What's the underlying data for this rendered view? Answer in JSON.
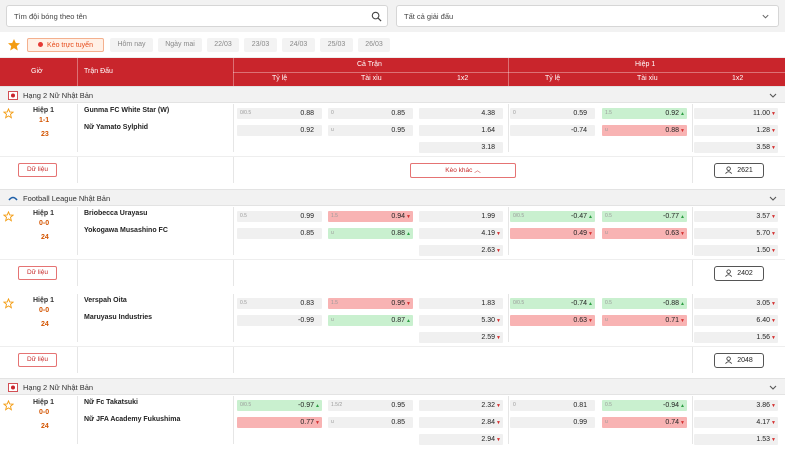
{
  "search": {
    "placeholder": "Tìm đội bóng theo tên"
  },
  "league_select": {
    "value": "Tất cả giải đấu"
  },
  "filters": [
    "Kèo trực tuyến",
    "Hôm nay",
    "Ngày mai",
    "22/03",
    "23/03",
    "24/03",
    "25/03",
    "26/03"
  ],
  "header": {
    "time": "Giờ",
    "match": "Trận Đấu",
    "full": "Cả Trận",
    "half": "Hiệp 1",
    "handicap": "Tỷ lệ",
    "overunder": "Tài xỉu",
    "x12": "1x2"
  },
  "colors": {
    "header_bg": "#c9252c",
    "accent": "#e64a19",
    "red_cell": "#f8b3b3",
    "green_cell": "#c9f0cf"
  },
  "leagues": [
    {
      "name": "Hạng 2 Nữ Nhật Bản",
      "flag_icon": "japan-flag-icon"
    },
    {
      "name": "Football League Nhật Bản",
      "flag_icon": "league-logo-icon"
    },
    {
      "name": "Hạng 2 Nữ Nhật Bản",
      "flag_icon": "japan-flag-icon"
    }
  ],
  "matches": [
    {
      "half": "Hiệp 1",
      "score": "1-1",
      "minute": "23",
      "home": "Gunma FC White Star (W)",
      "away": "Nữ Yamato Sylphid",
      "data_label": "Dữ liệu",
      "more_label": "Kèo khác",
      "count": "2621",
      "rows": [
        [
          [
            "0/0.5",
            "0.88",
            ""
          ],
          [
            "0",
            "0.85",
            ""
          ],
          [
            "",
            "4.38",
            ""
          ],
          [
            "0",
            "0.59",
            ""
          ],
          [
            "1.5",
            "0.92",
            "up",
            "green"
          ],
          [
            "",
            "11.00",
            "down"
          ]
        ],
        [
          [
            "",
            "0.92",
            ""
          ],
          [
            "u",
            "0.95",
            ""
          ],
          [
            "",
            "1.64",
            ""
          ],
          [
            "",
            "-0.74",
            ""
          ],
          [
            "u",
            "0.88",
            "down",
            "red"
          ],
          [
            "",
            "1.28",
            "down"
          ]
        ],
        [
          null,
          null,
          [
            "",
            "3.18",
            ""
          ],
          null,
          null,
          [
            "",
            "3.58",
            "down"
          ]
        ]
      ]
    },
    {
      "half": "Hiệp 1",
      "score": "0-0",
      "minute": "24",
      "home": "Briobecca Urayasu",
      "away": "Yokogawa Musashino FC",
      "data_label": "Dữ liệu",
      "count": "2402",
      "rows": [
        [
          [
            "0.5",
            "0.99",
            ""
          ],
          [
            "1.5",
            "0.94",
            "down",
            "red"
          ],
          [
            "",
            "1.99",
            ""
          ],
          [
            "0/0.5",
            "-0.47",
            "up",
            "green"
          ],
          [
            "0.5",
            "-0.77",
            "up",
            "green"
          ],
          [
            "",
            "3.57",
            "down"
          ]
        ],
        [
          [
            "",
            "0.85",
            ""
          ],
          [
            "u",
            "0.88",
            "up",
            "green"
          ],
          [
            "",
            "4.19",
            "down"
          ],
          [
            "",
            "0.49",
            "down",
            "red"
          ],
          [
            "u",
            "0.63",
            "down",
            "red"
          ],
          [
            "",
            "5.70",
            "down"
          ]
        ],
        [
          null,
          null,
          [
            "",
            "2.63",
            "down"
          ],
          null,
          null,
          [
            "",
            "1.50",
            "down"
          ]
        ]
      ]
    },
    {
      "half": "Hiệp 1",
      "score": "0-0",
      "minute": "24",
      "home": "Verspah Oita",
      "away": "Maruyasu Industries",
      "data_label": "Dữ liệu",
      "count": "2048",
      "rows": [
        [
          [
            "0.5",
            "0.83",
            ""
          ],
          [
            "1.5",
            "0.95",
            "down",
            "red"
          ],
          [
            "",
            "1.83",
            ""
          ],
          [
            "0/0.5",
            "-0.74",
            "up",
            "green"
          ],
          [
            "0.5",
            "-0.88",
            "up",
            "green"
          ],
          [
            "",
            "3.05",
            "down"
          ]
        ],
        [
          [
            "",
            "-0.99",
            ""
          ],
          [
            "u",
            "0.87",
            "up",
            "green"
          ],
          [
            "",
            "5.30",
            "down"
          ],
          [
            "",
            "0.63",
            "down",
            "red"
          ],
          [
            "u",
            "0.71",
            "down",
            "red"
          ],
          [
            "",
            "6.40",
            "down"
          ]
        ],
        [
          null,
          null,
          [
            "",
            "2.59",
            "down"
          ],
          null,
          null,
          [
            "",
            "1.56",
            "down"
          ]
        ]
      ]
    },
    {
      "half": "Hiệp 1",
      "score": "0-0",
      "minute": "24",
      "home": "Nữ Fc Takatsuki",
      "away": "Nữ JFA Academy Fukushima",
      "rows": [
        [
          [
            "0/0.5",
            "-0.97",
            "up",
            "green"
          ],
          [
            "1.5/2",
            "0.95",
            ""
          ],
          [
            "",
            "2.32",
            "down"
          ],
          [
            "0",
            "0.81",
            ""
          ],
          [
            "0.5",
            "-0.94",
            "up",
            "green"
          ],
          [
            "",
            "3.86",
            "down"
          ]
        ],
        [
          [
            "",
            "0.77",
            "down",
            "red"
          ],
          [
            "u",
            "0.85",
            ""
          ],
          [
            "",
            "2.84",
            "down"
          ],
          [
            "",
            "0.99",
            ""
          ],
          [
            "u",
            "0.74",
            "down",
            "red"
          ],
          [
            "",
            "4.17",
            "down"
          ]
        ],
        [
          null,
          null,
          [
            "",
            "2.94",
            "down"
          ],
          null,
          null,
          [
            "",
            "1.53",
            "down"
          ]
        ]
      ]
    }
  ]
}
